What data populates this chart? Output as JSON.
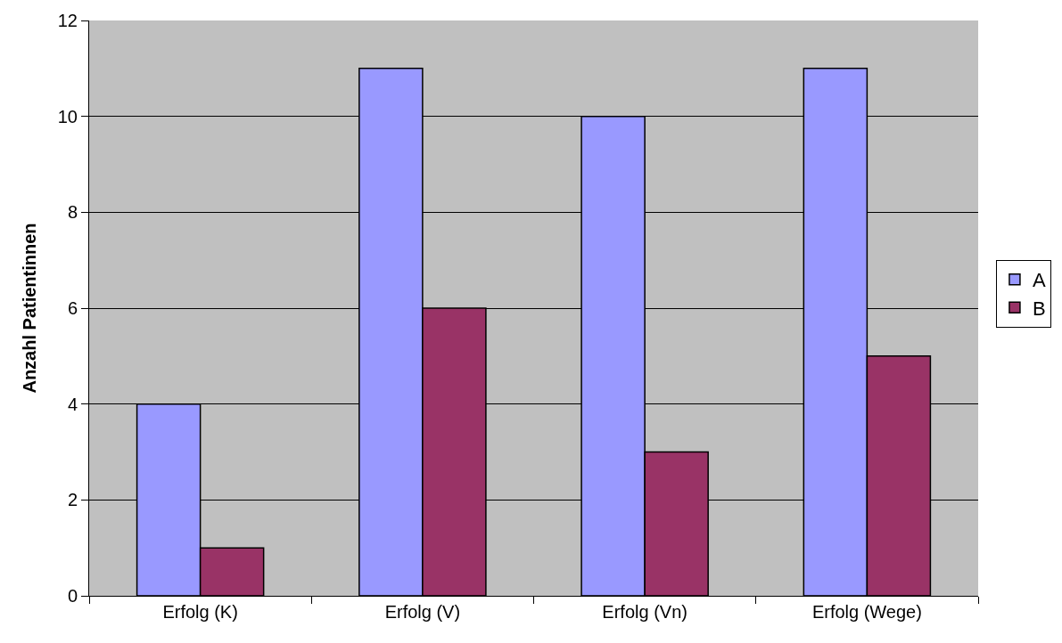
{
  "chart_data": {
    "type": "bar",
    "ylabel": "Anzahl Patientinnen",
    "categories": [
      "Erfolg (K)",
      "Erfolg (V)",
      "Erfolg (Vn)",
      "Erfolg (Wege)"
    ],
    "series": [
      {
        "name": "A",
        "color": "#9999ff",
        "values": [
          4,
          11,
          10,
          11
        ]
      },
      {
        "name": "B",
        "color": "#993366",
        "values": [
          1,
          6,
          3,
          5
        ]
      }
    ],
    "ylim": [
      0,
      12
    ],
    "yticks": [
      0,
      2,
      4,
      6,
      8,
      10,
      12
    ],
    "grid": "y",
    "legend": "right"
  }
}
